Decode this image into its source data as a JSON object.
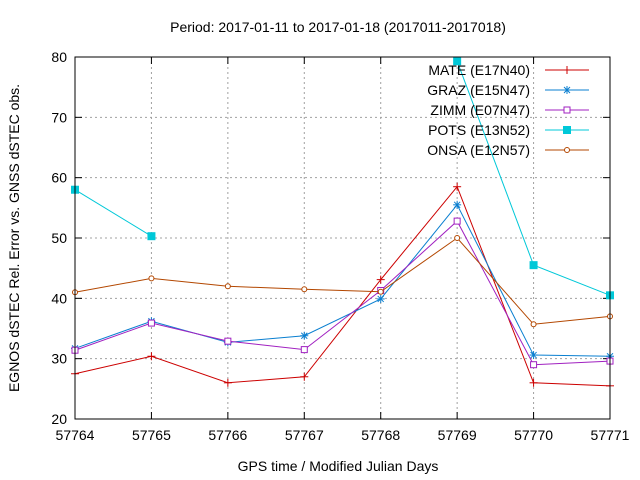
{
  "chart_data": {
    "type": "line",
    "title": "Period: 2017-01-11 to 2017-01-18 (2017011-2017018)",
    "xlabel": "GPS time / Modified Julian Days",
    "ylabel": "EGNOS dSTEC Rel. Error vs. GNSS dSTEC obs.",
    "xlim": [
      57764,
      57771
    ],
    "ylim": [
      20,
      80
    ],
    "x": [
      57764,
      57765,
      57766,
      57767,
      57768,
      57769,
      57770,
      57771
    ],
    "xticks": [
      "57764",
      "57765",
      "57766",
      "57767",
      "57768",
      "57769",
      "57770",
      "57771"
    ],
    "yticks": [
      "20",
      "30",
      "40",
      "50",
      "60",
      "70",
      "80"
    ],
    "grid": true,
    "legend_position": "top-right",
    "series": [
      {
        "name": "MATE (E17N40)",
        "color": "#cc0000",
        "marker": "plus",
        "values": [
          27.5,
          30.4,
          26.0,
          27.0,
          43.1,
          58.5,
          26.0,
          25.5
        ]
      },
      {
        "name": "GRAZ (E15N47)",
        "color": "#0a7fd0",
        "marker": "star",
        "values": [
          31.7,
          36.2,
          32.7,
          33.8,
          39.9,
          55.5,
          30.6,
          30.4
        ]
      },
      {
        "name": "ZIMM (E07N47)",
        "color": "#a020c0",
        "marker": "square-open",
        "values": [
          31.4,
          35.9,
          32.9,
          31.5,
          41.3,
          52.8,
          29.0,
          29.6
        ]
      },
      {
        "name": "POTS (E13N52)",
        "color": "#00c8d8",
        "marker": "square-filled",
        "values": [
          58.0,
          50.3,
          null,
          null,
          null,
          79.3,
          45.5,
          40.5
        ]
      },
      {
        "name": "ONSA (E12N57)",
        "color": "#b34700",
        "marker": "circle-open",
        "values": [
          41.0,
          43.3,
          42.0,
          41.5,
          41.1,
          50.0,
          35.7,
          37.0
        ]
      }
    ]
  }
}
